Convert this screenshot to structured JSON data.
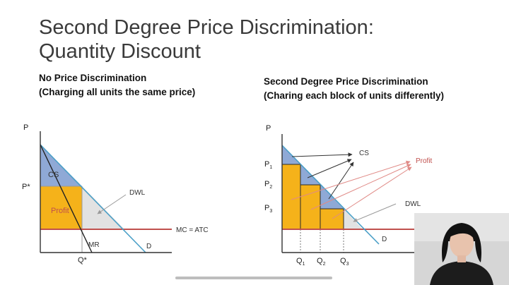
{
  "title": {
    "line1": "Second Degree Price Discrimination:",
    "line2": "Quantity Discount"
  },
  "left_panel": {
    "heading": "No Price Discrimination",
    "subheading": "(Charging all units the same price)",
    "labels": {
      "p_axis": "P",
      "p_star": "P*",
      "q_star": "Q*",
      "cs": "CS",
      "profit": "Profit",
      "dwl": "DWL",
      "mc_atc": "MC = ATC",
      "mr": "MR",
      "d": "D"
    }
  },
  "right_panel": {
    "heading": "Second Degree Price Discrimination",
    "subheading": "(Charing each block of units differently)",
    "labels": {
      "p_axis": "P",
      "p1": "P",
      "p1_sub": "1",
      "p2": "P",
      "p2_sub": "2",
      "p3": "P",
      "p3_sub": "3",
      "q1": "Q",
      "q1_sub": "1",
      "q2": "Q",
      "q2_sub": "2",
      "q3": "Q",
      "q3_sub": "3",
      "cs": "CS",
      "profit": "Profit",
      "dwl": "DWL",
      "d": "D"
    }
  },
  "colors": {
    "cs": "#8fa9d6",
    "profit": "#f5b21a",
    "dwl": "#e2e2e2",
    "demand": "#4a9fc7",
    "mc": "#c0504d",
    "axis": "#333333",
    "profit_text": "#c0504d"
  }
}
